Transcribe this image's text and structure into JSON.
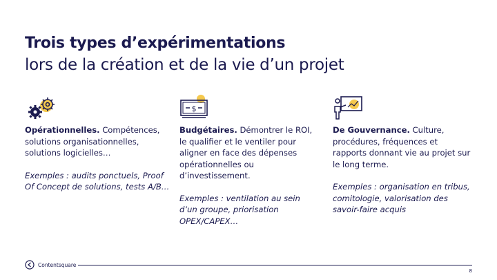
{
  "title": {
    "line1": "Trois types d’expérimentations",
    "line2": "lors de la création et de la vie d’un projet"
  },
  "columns": [
    {
      "icon": "gears-icon",
      "heading": "Opérationnelles.",
      "text": " Compétences, solutions organisationnelles, solutions logicielles…",
      "examples": "Exemples : audits ponctuels, Proof Of Concept de solutions, tests A/B…"
    },
    {
      "icon": "banknote-icon",
      "heading": "Budgétaires.",
      "text": " Démontrer le ROI, le qualifier et le ventiler pour aligner en face des dépenses opérationnelles ou d’investissement.",
      "examples": "Exemples : ventilation au sein d’un groupe, priorisation OPEX/CAPEX…"
    },
    {
      "icon": "presentation-board-icon",
      "heading": "De Gouvernance.",
      "text": " Culture, procédures, fréquences et rapports donnant vie au projet sur le long terme.",
      "examples": "Exemples : organisation en tribus, comitologie, valorisation des savoir-faire acquis"
    }
  ],
  "footer": {
    "brand": "Contentsquare",
    "page_number": "8"
  },
  "colors": {
    "navy": "#1b1a4f",
    "accent_yellow": "#f5c94e"
  }
}
